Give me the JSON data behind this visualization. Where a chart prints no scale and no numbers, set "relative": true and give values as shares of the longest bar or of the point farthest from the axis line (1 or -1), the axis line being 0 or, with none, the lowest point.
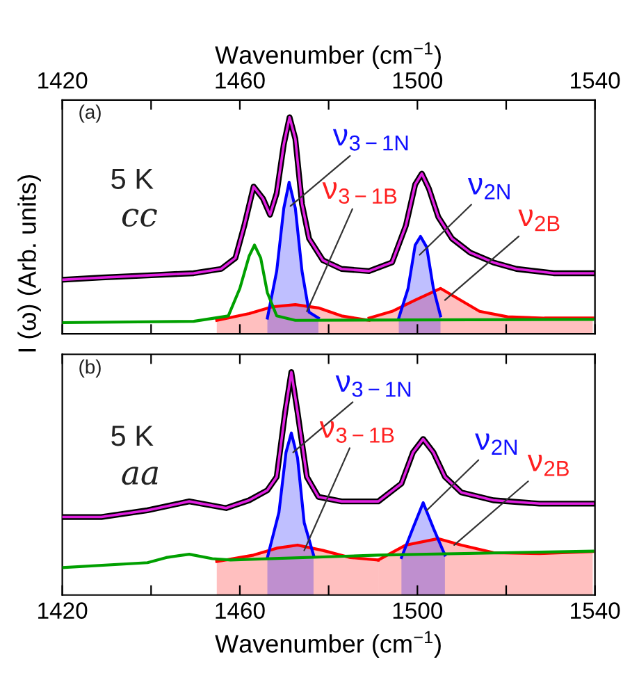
{
  "chart_data": [
    {
      "type": "line",
      "relative": true,
      "xlabel": "Wavenumber (cm$^{−1}$)",
      "ylabel": "I (ω) (Arb. units)",
      "xlim": [
        1420,
        1540
      ],
      "xticks": [
        1420,
        {
          "value": 1440,
          "label": null
        },
        1460,
        {
          "value": 1480,
          "label": null
        },
        1500,
        {
          "value": 1520,
          "label": null
        },
        1540
      ],
      "grid": false,
      "legend": false,
      "tick_labels": "x",
      "series": [
        {
          "color": "#000000",
          "x": [
            1420,
            1428.8,
            1439.2,
            1449.6,
            1455.8,
            1459.0,
            1461.0,
            1463.1,
            1465.2,
            1466.8,
            1468.3,
            1469.9,
            1471.2,
            1472.5,
            1474.0,
            1475.6,
            1478.7,
            1482.9,
            1489.1,
            1494.3,
            1497.4,
            1499.5,
            1501.0,
            1502.6,
            1504.7,
            1507.8,
            1511.9,
            1517.1,
            1522.3,
            1530.7,
            1539.5
          ],
          "values": [
            0.25,
            0.26,
            0.27,
            0.28,
            0.3,
            0.35,
            0.5,
            0.68,
            0.625,
            0.55,
            0.65,
            0.875,
            1.0,
            0.9,
            0.6,
            0.44,
            0.34,
            0.3,
            0.29,
            0.33,
            0.5,
            0.69,
            0.74,
            0.67,
            0.54,
            0.44,
            0.375,
            0.33,
            0.3,
            0.28,
            0.28
          ]
        },
        {
          "color": "#e020e0",
          "x": [
            1420,
            1428.8,
            1439.2,
            1449.6,
            1455.8,
            1459.0,
            1461.0,
            1463.1,
            1465.2,
            1466.8,
            1468.3,
            1469.9,
            1471.2,
            1472.5,
            1474.0,
            1475.6,
            1478.7,
            1482.9,
            1489.1,
            1494.3,
            1497.4,
            1499.5,
            1501.0,
            1502.6,
            1504.7,
            1507.8,
            1511.9,
            1517.1,
            1522.3,
            1530.7,
            1539.5
          ],
          "values": [
            0.25,
            0.26,
            0.27,
            0.28,
            0.3,
            0.35,
            0.5,
            0.68,
            0.625,
            0.55,
            0.65,
            0.875,
            1.0,
            0.9,
            0.6,
            0.44,
            0.34,
            0.3,
            0.29,
            0.33,
            0.5,
            0.69,
            0.74,
            0.67,
            0.54,
            0.44,
            0.375,
            0.33,
            0.3,
            0.28,
            0.28
          ]
        },
        {
          "type": "area",
          "color": "#ff0000",
          "x": [
            1454.8,
            1462.1,
            1467.3,
            1472.5,
            1477.7,
            1482.9,
            1489.1
          ],
          "values": [
            0.0625,
            0.094,
            0.125,
            0.135,
            0.12,
            0.083,
            0.0625
          ]
        },
        {
          "type": "area",
          "color": "#ff0000",
          "x": [
            1489.1,
            1494.3,
            1499.5,
            1505.2,
            1508.8,
            1514.0,
            1520.3,
            1528.6,
            1539.5
          ],
          "values": [
            0.073,
            0.104,
            0.156,
            0.21,
            0.167,
            0.104,
            0.079,
            0.073,
            0.073
          ]
        },
        {
          "type": "area",
          "color": "#0000ff",
          "x": [
            1466.2,
            1468.3,
            1469.9,
            1471.1,
            1472.5,
            1474.0,
            1475.6,
            1477.7
          ],
          "values": [
            0.073,
            0.29,
            0.58,
            0.7,
            0.58,
            0.29,
            0.1,
            0.073
          ]
        },
        {
          "type": "area",
          "color": "#0000ff",
          "x": [
            1495.8,
            1497.9,
            1499.5,
            1500.7,
            1502.1,
            1503.6,
            1505.2
          ],
          "values": [
            0.073,
            0.21,
            0.41,
            0.45,
            0.4,
            0.21,
            0.083
          ]
        },
        {
          "color": "#00a000",
          "x": [
            1420,
            1449.6,
            1457.4,
            1460.0,
            1462.1,
            1463.3,
            1464.7,
            1466.2,
            1468.3,
            1472.5,
            1539.5
          ],
          "values": [
            0.052,
            0.058,
            0.083,
            0.21,
            0.36,
            0.41,
            0.35,
            0.19,
            0.083,
            0.0625,
            0.067
          ]
        }
      ],
      "annotations": [
        "(a)",
        "5 K",
        "cc",
        {
          "text": "ν$_{3−1N}$",
          "x": 1471.4,
          "y": 0.59
        },
        {
          "text": "ν$_{3−1B}$",
          "x": 1475.1,
          "y": 0.104
        },
        {
          "text": "ν$_{2N}$",
          "x": 1500.5,
          "y": 0.365
        },
        {
          "text": "ν$_{2B}$",
          "x": 1506.2,
          "y": 0.156
        }
      ]
    },
    {
      "type": "line",
      "relative": true,
      "xlabel": "Wavenumber (cm$^{−1}$)",
      "xlim": [
        1420,
        1540
      ],
      "xticks": [
        1420,
        {
          "value": 1440,
          "label": null
        },
        1460,
        {
          "value": 1480,
          "label": null
        },
        1500,
        {
          "value": 1520,
          "label": null
        },
        1540
      ],
      "grid": false,
      "legend": false,
      "tick_labels": "x",
      "series": [
        {
          "color": "#000000",
          "x": [
            1420,
            1428.8,
            1439.2,
            1448.6,
            1456.9,
            1462.1,
            1466.2,
            1468.3,
            1470.2,
            1471.6,
            1473.0,
            1475.1,
            1477.7,
            1482.9,
            1491.2,
            1496.4,
            1499.0,
            1501.3,
            1503.6,
            1506.2,
            1509.9,
            1517.1,
            1527.5,
            1539.5
          ],
          "values": [
            0.35,
            0.35,
            0.38,
            0.42,
            0.39,
            0.425,
            0.47,
            0.53,
            0.82,
            1.0,
            0.82,
            0.53,
            0.44,
            0.42,
            0.42,
            0.5,
            0.64,
            0.7,
            0.64,
            0.53,
            0.46,
            0.425,
            0.41,
            0.41
          ]
        },
        {
          "color": "#e020e0",
          "x": [
            1420,
            1428.8,
            1439.2,
            1448.6,
            1456.9,
            1462.1,
            1466.2,
            1468.3,
            1470.2,
            1471.6,
            1473.0,
            1475.1,
            1477.7,
            1482.9,
            1491.2,
            1496.4,
            1499.0,
            1501.3,
            1503.6,
            1506.2,
            1509.9,
            1517.1,
            1527.5,
            1539.5
          ],
          "values": [
            0.35,
            0.35,
            0.38,
            0.42,
            0.39,
            0.425,
            0.47,
            0.53,
            0.82,
            1.0,
            0.82,
            0.53,
            0.44,
            0.42,
            0.42,
            0.5,
            0.64,
            0.7,
            0.64,
            0.53,
            0.46,
            0.425,
            0.41,
            0.41
          ]
        },
        {
          "type": "area",
          "color": "#ff0000",
          "x": [
            1454.8,
            1463.1,
            1468.3,
            1473.0,
            1478.7,
            1484.9,
            1491.2
          ],
          "values": [
            0.15,
            0.179,
            0.21,
            0.224,
            0.2,
            0.168,
            0.157
          ]
        },
        {
          "type": "area",
          "color": "#ff0000",
          "x": [
            1491.2,
            1497.4,
            1504.7,
            1509.9,
            1517.1,
            1527.5,
            1539.5
          ],
          "values": [
            0.157,
            0.224,
            0.253,
            0.224,
            0.19,
            0.186,
            0.195
          ]
        },
        {
          "type": "area",
          "color": "#0000ff",
          "x": [
            1466.2,
            1468.8,
            1470.4,
            1471.6,
            1473.0,
            1474.5,
            1476.6
          ],
          "values": [
            0.168,
            0.37,
            0.64,
            0.727,
            0.615,
            0.324,
            0.179
          ]
        },
        {
          "type": "area",
          "color": "#0000ff",
          "x": [
            1496.4,
            1499.0,
            1501.3,
            1503.6,
            1506.2
          ],
          "values": [
            0.168,
            0.3,
            0.414,
            0.3,
            0.179
          ]
        },
        {
          "color": "#00a000",
          "x": [
            1420,
            1439.2,
            1443.4,
            1448.6,
            1453.8,
            1457.9,
            1491.2,
            1539.5
          ],
          "values": [
            0.123,
            0.145,
            0.168,
            0.183,
            0.163,
            0.157,
            0.179,
            0.197
          ]
        }
      ],
      "annotations": [
        "(b)",
        "5 K",
        "aa",
        {
          "text": "ν$_{3−1N}$",
          "x": 1472.0,
          "y": 0.64
        },
        {
          "text": "ν$_{3−1B}$",
          "x": 1474.5,
          "y": 0.2
        },
        {
          "text": "ν$_{2N}$",
          "x": 1502.1,
          "y": 0.38
        },
        {
          "text": "ν$_{2B}$",
          "x": 1508.3,
          "y": 0.224
        }
      ]
    }
  ]
}
